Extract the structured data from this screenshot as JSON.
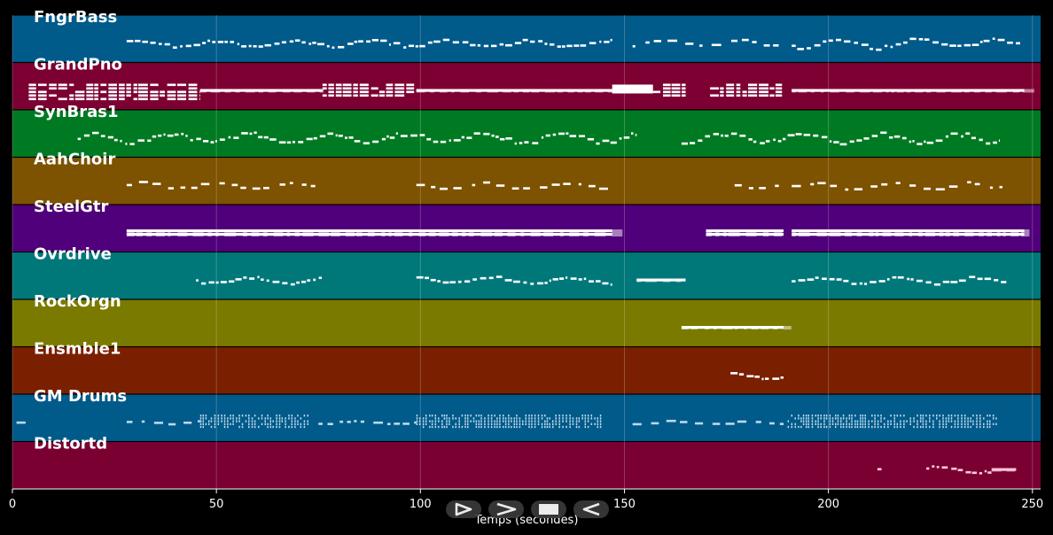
{
  "chart_data": {
    "type": "piano-roll",
    "xlabel": "Temps (secondes)",
    "xlim": [
      0,
      252
    ],
    "xticks": [
      0,
      50,
      100,
      150,
      200,
      250
    ],
    "grid": true,
    "tracks": [
      {
        "name": "FngrBass",
        "color": "#005a8a",
        "note_color": "#ffffff",
        "segments": [
          [
            28,
            147,
            "dense",
            2
          ],
          [
            152,
            188,
            "sparse",
            2
          ],
          [
            191,
            247,
            "dense",
            3
          ]
        ]
      },
      {
        "name": "GrandPno",
        "color": "#7d0032",
        "note_color": "#ffffff",
        "segments": [
          [
            4,
            46,
            "chords",
            5
          ],
          [
            46,
            76,
            "solid",
            1
          ],
          [
            76,
            99,
            "chords",
            4
          ],
          [
            99,
            147,
            "solid",
            1
          ],
          [
            147,
            157,
            "block",
            4
          ],
          [
            157,
            165,
            "chords",
            4
          ],
          [
            171,
            189,
            "chords",
            4
          ],
          [
            191,
            248,
            "solid",
            1
          ]
        ]
      },
      {
        "name": "SynBras1",
        "color": "#007a22",
        "note_color": "#ffffff",
        "segments": [
          [
            16,
            153,
            "dense",
            3
          ],
          [
            164,
            242,
            "dense",
            3
          ]
        ]
      },
      {
        "name": "AahChoir",
        "color": "#7d5200",
        "note_color": "#ffffff",
        "segments": [
          [
            28,
            75,
            "sparse",
            2
          ],
          [
            99,
            146,
            "sparse",
            2
          ],
          [
            177,
            189,
            "sparse",
            2
          ],
          [
            191,
            244,
            "sparse",
            2
          ]
        ]
      },
      {
        "name": "SteelGtr",
        "color": "#50007a",
        "note_color": "#ffffff",
        "segments": [
          [
            28,
            147,
            "solid",
            2
          ],
          [
            170,
            189,
            "solid",
            2
          ],
          [
            191,
            248,
            "solid",
            2
          ]
        ]
      },
      {
        "name": "Ovrdrive",
        "color": "#00787a",
        "note_color": "#ffffff",
        "segments": [
          [
            45,
            76,
            "dense",
            2
          ],
          [
            99,
            147,
            "dense",
            2
          ],
          [
            153,
            165,
            "solid",
            1
          ],
          [
            191,
            244,
            "dense",
            2
          ]
        ]
      },
      {
        "name": "RockOrgn",
        "color": "#7a7a00",
        "note_color": "#ffffff",
        "segments": [
          [
            164,
            189,
            "solid",
            1
          ]
        ]
      },
      {
        "name": "Ensmble1",
        "color": "#7a2000",
        "note_color": "#ffffff",
        "segments": [
          [
            176,
            189,
            "dense",
            2
          ]
        ]
      },
      {
        "name": "GM Drums",
        "color": "#005a8a",
        "note_color": "#bcd8ea",
        "segments": [
          [
            1,
            4,
            "sparse",
            1
          ],
          [
            28,
            46,
            "sparse",
            1
          ],
          [
            46,
            73,
            "drums",
            5
          ],
          [
            75,
            99,
            "sparse",
            1
          ],
          [
            99,
            144,
            "drums",
            5
          ],
          [
            152,
            190,
            "sparse",
            1
          ],
          [
            190,
            241,
            "drums",
            5
          ]
        ]
      },
      {
        "name": "Distortd",
        "color": "#7a0032",
        "note_color": "#ffc8da",
        "segments": [
          [
            212,
            215,
            "sparse",
            1
          ],
          [
            224,
            240,
            "dense",
            2
          ],
          [
            240,
            246,
            "solid",
            1
          ]
        ]
      }
    ]
  },
  "controls": [
    {
      "name": "play-button",
      "icon": "play-outline-icon"
    },
    {
      "name": "fast-forward-button",
      "icon": "chevron-right-icon"
    },
    {
      "name": "stop-button",
      "icon": "stop-square-icon"
    },
    {
      "name": "rewind-button",
      "icon": "chevron-left-icon"
    }
  ]
}
